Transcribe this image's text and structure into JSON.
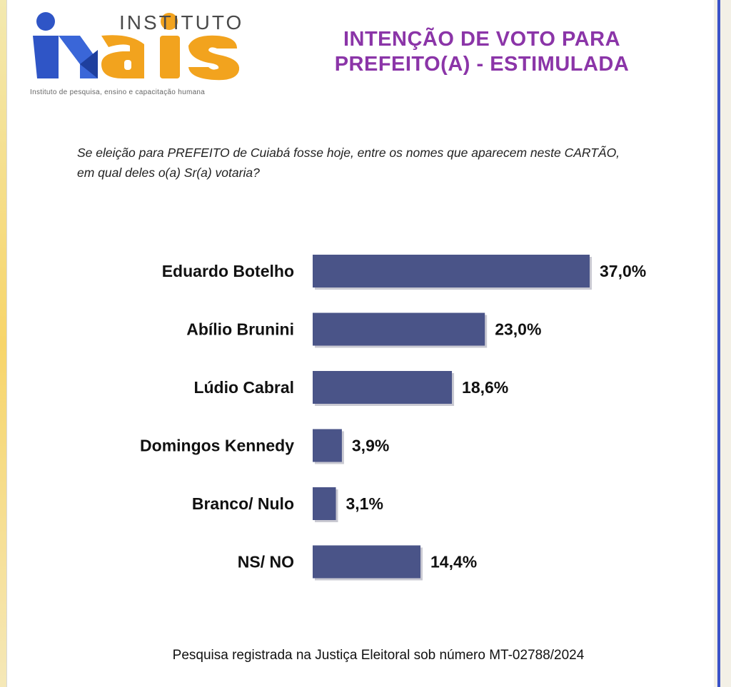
{
  "logo": {
    "brand_top": "INSTITUTO",
    "brand_main": "MAIS",
    "tagline": "Instituto de pesquisa, ensino e capacitação humana"
  },
  "title": {
    "line1": "INTENÇÃO DE VOTO PARA",
    "line2": "PREFEITO(A) - ESTIMULADA"
  },
  "question": {
    "line1": "Se eleição para PREFEITO de Cuiabá fosse hoje, entre os nomes que aparecem neste CARTÃO,",
    "line2": "em qual deles o(a) Sr(a) votaria?"
  },
  "chart_data": {
    "type": "bar",
    "orientation": "horizontal",
    "categories": [
      "Eduardo Botelho",
      "Abílio Brunini",
      "Lúdio Cabral",
      "Domingos Kennedy",
      "Branco/ Nulo",
      "NS/ NO"
    ],
    "values": [
      37.0,
      23.0,
      18.6,
      3.9,
      3.1,
      14.4
    ],
    "value_labels": [
      "37,0%",
      "23,0%",
      "18,6%",
      "3,9%",
      "3,1%",
      "14,4%"
    ],
    "bar_color": "#4a5488",
    "grid": false,
    "legend": "none"
  },
  "source_note": "Pesquisa registrada na Justiça Eleitoral sob número MT-02788/2024",
  "colors": {
    "title": "#8b35a8",
    "logo_blue": "#2f55c6",
    "logo_orange": "#f2a31e"
  }
}
